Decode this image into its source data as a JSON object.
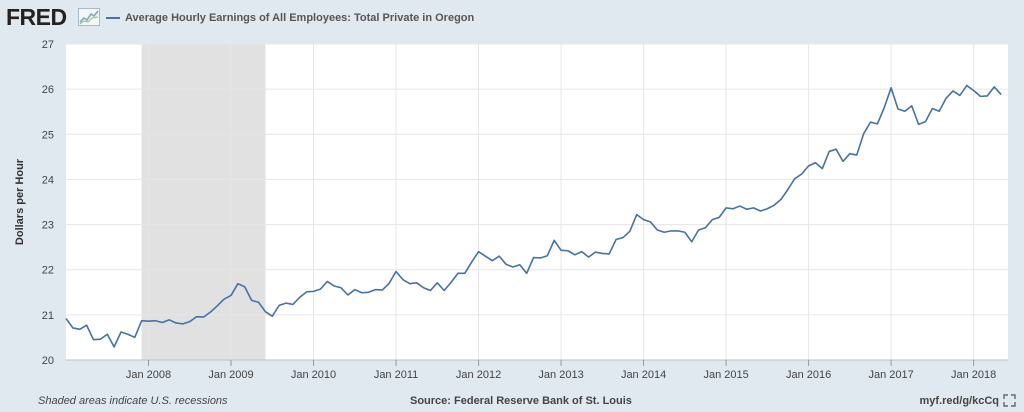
{
  "header": {
    "logo_text": "FRED",
    "logo_icon": "line-graph-icon",
    "legend_label": "Average Hourly Earnings of All Employees: Total Private in Oregon"
  },
  "colors": {
    "line": "#4572a7",
    "recession": "#e1e1e1",
    "plot_bg": "#ffffff",
    "background": "#e1e9f0"
  },
  "footer": {
    "note": "Shaded areas indicate U.S. recessions",
    "source": "Source: Federal Reserve Bank of St. Louis",
    "url": "myf.red/g/kcCq",
    "icon": "fullscreen-icon"
  },
  "chart_data": {
    "type": "line",
    "title": "Average Hourly Earnings of All Employees: Total Private in Oregon",
    "xlabel": "",
    "ylabel": "Dollars per Hour",
    "ylim": [
      20,
      27
    ],
    "yticks": [
      20,
      21,
      22,
      23,
      24,
      25,
      26,
      27
    ],
    "xlim": [
      "2007-01",
      "2018-06"
    ],
    "xticks": [
      {
        "label": "Jan 2008",
        "value": "2008-01"
      },
      {
        "label": "Jan 2009",
        "value": "2009-01"
      },
      {
        "label": "Jan 2010",
        "value": "2010-01"
      },
      {
        "label": "Jan 2011",
        "value": "2011-01"
      },
      {
        "label": "Jan 2012",
        "value": "2012-01"
      },
      {
        "label": "Jan 2013",
        "value": "2013-01"
      },
      {
        "label": "Jan 2014",
        "value": "2014-01"
      },
      {
        "label": "Jan 2015",
        "value": "2015-01"
      },
      {
        "label": "Jan 2016",
        "value": "2016-01"
      },
      {
        "label": "Jan 2017",
        "value": "2017-01"
      },
      {
        "label": "Jan 2018",
        "value": "2018-01"
      }
    ],
    "grid": true,
    "recessions": [
      {
        "start": "2007-12",
        "end": "2009-06"
      }
    ],
    "series": [
      {
        "name": "Average Hourly Earnings of All Employees: Total Private in Oregon",
        "start": "2007-01",
        "frequency": "monthly",
        "values": [
          20.92,
          20.71,
          20.68,
          20.77,
          20.45,
          20.46,
          20.57,
          20.29,
          20.62,
          20.57,
          20.5,
          20.87,
          20.86,
          20.87,
          20.83,
          20.89,
          20.82,
          20.8,
          20.85,
          20.96,
          20.95,
          21.06,
          21.2,
          21.35,
          21.43,
          21.69,
          21.62,
          21.32,
          21.28,
          21.07,
          20.97,
          21.21,
          21.26,
          21.23,
          21.39,
          21.51,
          21.52,
          21.57,
          21.74,
          21.64,
          21.6,
          21.44,
          21.56,
          21.49,
          21.5,
          21.56,
          21.55,
          21.7,
          21.96,
          21.78,
          21.69,
          21.71,
          21.6,
          21.54,
          21.71,
          21.54,
          21.72,
          21.92,
          21.92,
          22.17,
          22.4,
          22.3,
          22.2,
          22.3,
          22.12,
          22.06,
          22.11,
          21.92,
          22.27,
          22.26,
          22.31,
          22.65,
          22.43,
          22.42,
          22.33,
          22.4,
          22.28,
          22.39,
          22.36,
          22.35,
          22.67,
          22.71,
          22.85,
          23.22,
          23.11,
          23.06,
          22.88,
          22.83,
          22.86,
          22.86,
          22.83,
          22.62,
          22.88,
          22.93,
          23.11,
          23.16,
          23.37,
          23.35,
          23.41,
          23.34,
          23.37,
          23.3,
          23.35,
          23.43,
          23.56,
          23.78,
          24.02,
          24.12,
          24.3,
          24.37,
          24.24,
          24.62,
          24.67,
          24.4,
          24.57,
          24.54,
          25.01,
          25.27,
          25.23,
          25.59,
          26.03,
          25.56,
          25.51,
          25.63,
          25.22,
          25.28,
          25.57,
          25.51,
          25.8,
          25.96,
          25.86,
          26.08,
          25.97,
          25.84,
          25.85,
          26.05,
          25.88
        ]
      }
    ]
  }
}
